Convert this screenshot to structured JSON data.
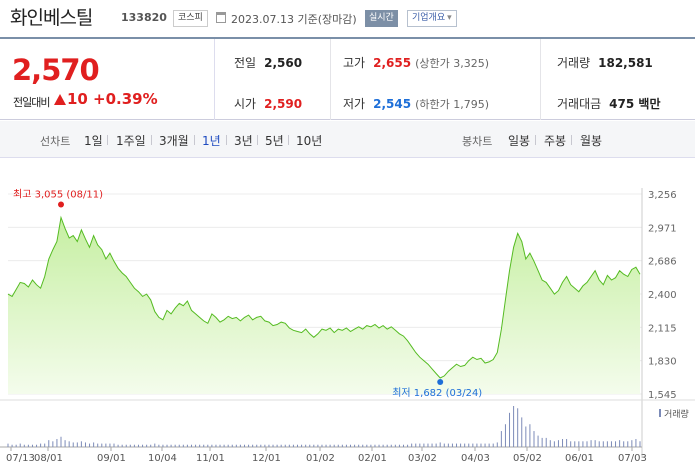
{
  "header": {
    "stock_name": "화인베스틸",
    "stock_code": "133820",
    "market": "코스피",
    "base_date": "2023.07.13 기준(장마감)",
    "live_label": "실시간",
    "overview_label": "기업개요",
    "overview_arrow": "▾"
  },
  "quote": {
    "price": "2,570",
    "change_label": "전일대비",
    "change_value": "10",
    "change_rate": "+0.39%",
    "prev_close_label": "전일",
    "prev_close": "2,560",
    "high_label": "고가",
    "high": "2,655",
    "upper_limit": "(상한가 3,325)",
    "volume_label": "거래량",
    "volume": "182,581",
    "open_label": "시가",
    "open": "2,590",
    "low_label": "저가",
    "low": "2,545",
    "lower_limit": "(하한가 1,795)",
    "amount_label": "거래대금",
    "amount": "475 백만"
  },
  "periods": {
    "line_label": "선차트",
    "line_items": [
      "1일",
      "1주일",
      "3개월",
      "1년",
      "3년",
      "5년",
      "10년"
    ],
    "active": "1년",
    "candle_label": "봉차트",
    "candle_items": [
      "일봉",
      "주봉",
      "월봉"
    ]
  },
  "colors": {
    "up": "#e01f1f",
    "down": "#1e6fd8",
    "line": "#55bb22",
    "fill": "#dff5c8"
  },
  "chart_data": {
    "type": "area",
    "ylim": [
      1545,
      3256
    ],
    "y_ticks": [
      "3,256",
      "2,971",
      "2,686",
      "2,400",
      "2,115",
      "1,830",
      "1,545"
    ],
    "x_ticks": [
      "07/13",
      "08/01",
      "09/01",
      "10/04",
      "11/01",
      "12/01",
      "01/02",
      "02/01",
      "03/02",
      "04/03",
      "05/02",
      "06/01",
      "07/03"
    ],
    "max_label": "최고 3,055 (08/11)",
    "min_label": "최저 1,682 (03/24)",
    "volume_legend": "거래량",
    "series": [
      {
        "values": [
          2400,
          2380,
          2440,
          2500,
          2490,
          2460,
          2520,
          2480,
          2450,
          2550,
          2700,
          2780,
          2850,
          3055,
          2960,
          2880,
          2900,
          2850,
          2950,
          2870,
          2800,
          2900,
          2820,
          2780,
          2700,
          2750,
          2680,
          2620,
          2580,
          2550,
          2500,
          2450,
          2420,
          2380,
          2400,
          2350,
          2250,
          2200,
          2180,
          2260,
          2230,
          2280,
          2320,
          2300,
          2340,
          2260,
          2230,
          2200,
          2170,
          2150,
          2230,
          2200,
          2160,
          2180,
          2210,
          2190,
          2200,
          2170,
          2200,
          2220,
          2180,
          2200,
          2210,
          2170,
          2160,
          2130,
          2140,
          2160,
          2150,
          2110,
          2090,
          2080,
          2070,
          2100,
          2060,
          2030,
          2060,
          2100,
          2090,
          2110,
          2070,
          2100,
          2090,
          2110,
          2080,
          2100,
          2120,
          2100,
          2130,
          2120,
          2140,
          2110,
          2130,
          2100,
          2120,
          2090,
          2060,
          2040,
          2000,
          1950,
          1900,
          1860,
          1830,
          1800,
          1760,
          1720,
          1682,
          1700,
          1740,
          1770,
          1800,
          1780,
          1790,
          1830,
          1860,
          1840,
          1850,
          1810,
          1820,
          1840,
          1900,
          2100,
          2350,
          2600,
          2800,
          2920,
          2850,
          2700,
          2750,
          2680,
          2600,
          2520,
          2500,
          2450,
          2400,
          2430,
          2500,
          2550,
          2480,
          2450,
          2420,
          2470,
          2500,
          2550,
          2600,
          2520,
          2480,
          2560,
          2520,
          2540,
          2600,
          2570,
          2550,
          2610,
          2630,
          2570
        ]
      }
    ],
    "volume": [
      3,
      2,
      2,
      3,
      2,
      2,
      2,
      2,
      3,
      3,
      6,
      5,
      7,
      9,
      6,
      5,
      4,
      4,
      5,
      4,
      3,
      4,
      3,
      3,
      3,
      3,
      3,
      2,
      2,
      2,
      2,
      2,
      2,
      2,
      2,
      2,
      3,
      2,
      2,
      2,
      2,
      2,
      2,
      2,
      2,
      2,
      2,
      2,
      2,
      2,
      2,
      2,
      2,
      2,
      2,
      2,
      2,
      2,
      2,
      2,
      2,
      2,
      2,
      2,
      2,
      2,
      2,
      2,
      2,
      2,
      2,
      2,
      2,
      2,
      2,
      2,
      2,
      2,
      2,
      2,
      2,
      2,
      2,
      2,
      2,
      2,
      2,
      2,
      2,
      2,
      2,
      2,
      2,
      2,
      2,
      2,
      2,
      2,
      2,
      3,
      3,
      3,
      3,
      3,
      3,
      3,
      4,
      3,
      3,
      3,
      3,
      3,
      3,
      3,
      3,
      3,
      3,
      3,
      3,
      3,
      4,
      14,
      20,
      30,
      36,
      34,
      26,
      18,
      20,
      14,
      10,
      8,
      8,
      6,
      5,
      6,
      7,
      7,
      5,
      5,
      5,
      5,
      5,
      6,
      6,
      5,
      5,
      5,
      5,
      5,
      6,
      5,
      5,
      6,
      7,
      5
    ]
  }
}
